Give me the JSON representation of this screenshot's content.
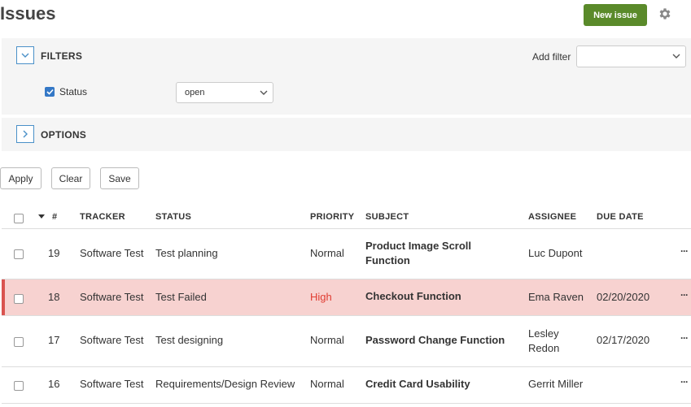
{
  "header": {
    "title": "Issues",
    "new_issue_label": "New issue",
    "settings_icon": "gear-icon"
  },
  "filters": {
    "title": "FILTERS",
    "add_filter_label": "Add filter",
    "add_filter_value": "",
    "status_label": "Status",
    "status_checked": true,
    "status_value": "open"
  },
  "options": {
    "title": "OPTIONS"
  },
  "actions": {
    "apply": "Apply",
    "clear": "Clear",
    "save": "Save"
  },
  "table": {
    "columns": {
      "id": "#",
      "tracker": "TRACKER",
      "status": "STATUS",
      "priority": "PRIORITY",
      "subject": "SUBJECT",
      "assignee": "ASSIGNEE",
      "due_date": "DUE DATE"
    },
    "rows": [
      {
        "id": "19",
        "tracker": "Software Test",
        "status": "Test planning",
        "priority": "Normal",
        "subject_line1": "Product Image Scroll",
        "subject_line2": "Function",
        "assignee_line1": "Luc Dupont",
        "assignee_line2": "",
        "due_date": ""
      },
      {
        "id": "18",
        "tracker": "Software Test",
        "status": "Test Failed",
        "priority": "High",
        "subject_line1": "Checkout Function",
        "subject_line2": "",
        "assignee_line1": "Ema Raven",
        "assignee_line2": "",
        "due_date": "02/20/2020"
      },
      {
        "id": "17",
        "tracker": "Software Test",
        "status": "Test designing",
        "priority": "Normal",
        "subject_line1": "Password Change Function",
        "subject_line2": "",
        "assignee_line1": "Lesley",
        "assignee_line2": "Redon",
        "due_date": "02/17/2020"
      },
      {
        "id": "16",
        "tracker": "Software Test",
        "status": "Requirements/Design Review",
        "priority": "Normal",
        "subject_line1": "Credit Card Usability",
        "subject_line2": "",
        "assignee_line1": "Gerrit Miller",
        "assignee_line2": "",
        "due_date": ""
      }
    ],
    "row_menu_label": "···",
    "highlight_color": "#f7d2d0",
    "high_priority_color": "#e03c31"
  }
}
